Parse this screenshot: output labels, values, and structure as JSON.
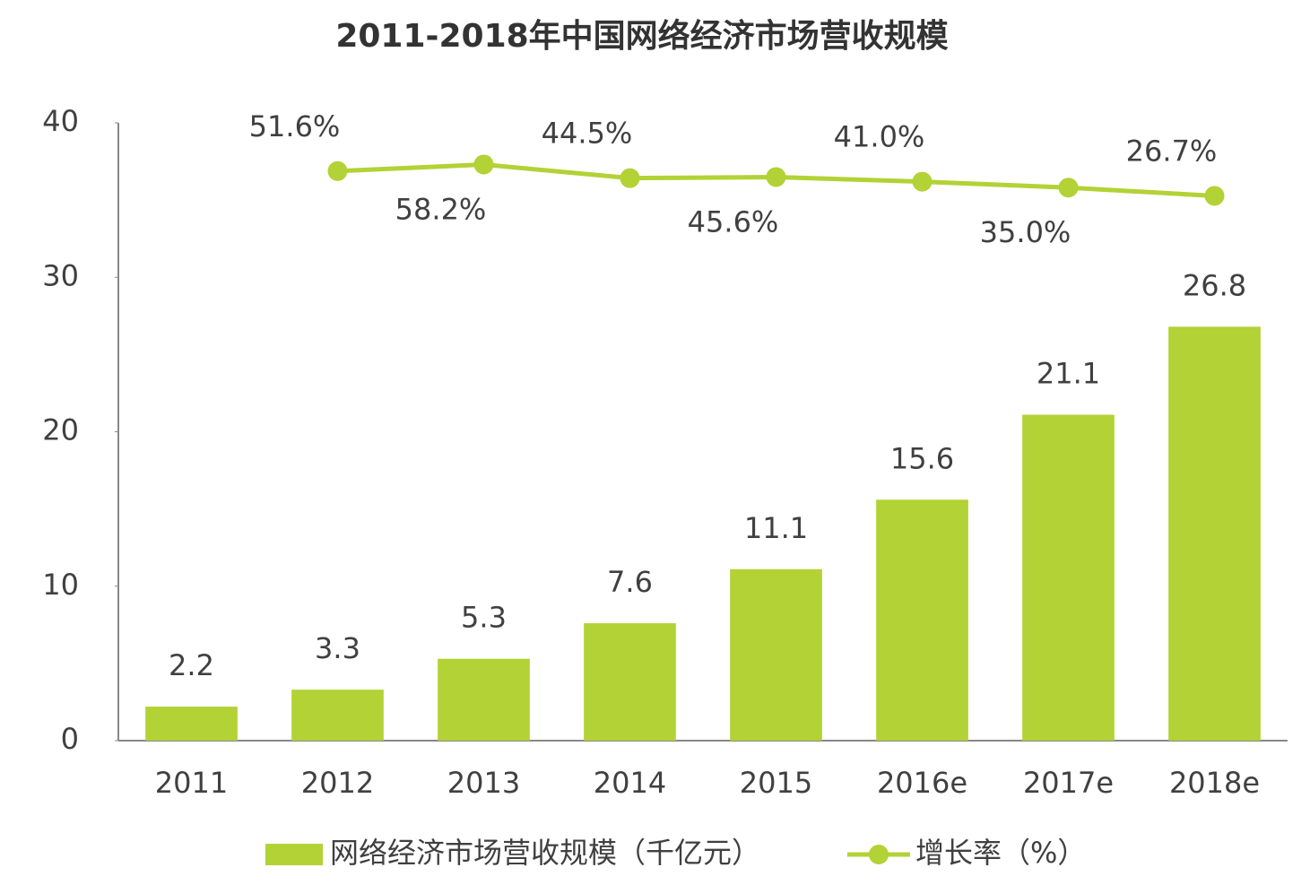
{
  "chart_data": {
    "type": "bar",
    "title": "2011-2018年中国网络经济市场营收规模",
    "categories": [
      "2011",
      "2012",
      "2013",
      "2014",
      "2015",
      "2016e",
      "2017e",
      "2018e"
    ],
    "series": [
      {
        "name": "网络经济市场营收规模（千亿元）",
        "type": "bar",
        "color": "#b2d235",
        "values": [
          2.2,
          3.3,
          5.3,
          7.6,
          11.1,
          15.6,
          21.1,
          26.8
        ]
      },
      {
        "name": "增长率（%）",
        "type": "line",
        "axis": "y2",
        "color": "#b2d235",
        "values": [
          null,
          51.6,
          58.2,
          44.5,
          45.6,
          41.0,
          35.0,
          26.7
        ],
        "value_labels": [
          null,
          "51.6%",
          "58.2%",
          "44.5%",
          "45.6%",
          "41.0%",
          "35.0%",
          "26.7%"
        ]
      }
    ],
    "ylim": [
      0,
      40
    ],
    "yticks": [
      0,
      10,
      20,
      30,
      40
    ],
    "y2lim": [
      -520,
      100
    ],
    "legend": "bottom"
  }
}
